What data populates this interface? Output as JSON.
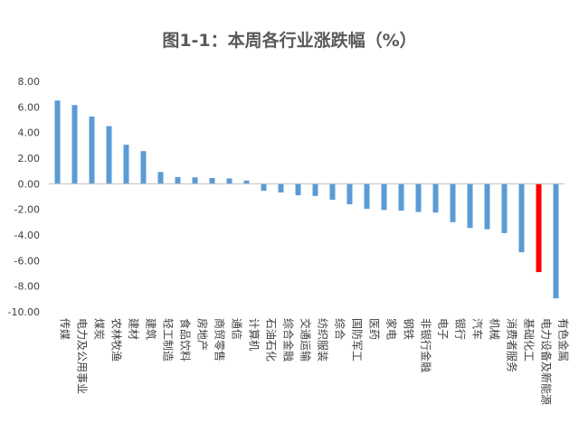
{
  "chart_data": {
    "type": "bar",
    "title": "图1-1：本周各行业涨跌幅（%）",
    "xlabel": "",
    "ylabel": "",
    "ylim": [
      -10,
      8
    ],
    "yticks": [
      "8.00",
      "6.00",
      "4.00",
      "2.00",
      "0.00",
      "-2.00",
      "-4.00",
      "-6.00",
      "-8.00",
      "-10.00"
    ],
    "grid": false,
    "legend": "none",
    "bar_color": "#5B9BD5",
    "highlight_color": "#FF0000",
    "highlight_category": "电力设备及新能源",
    "categories": [
      "传媒",
      "电力及公用事业",
      "煤炭",
      "农林牧渔",
      "建材",
      "建筑",
      "轻工制造",
      "食品饮料",
      "房地产",
      "商贸零售",
      "通信",
      "计算机",
      "石油石化",
      "综合金融",
      "交通运输",
      "纺织服装",
      "综合",
      "国防军工",
      "医药",
      "家电",
      "钢铁",
      "非银行金融",
      "电子",
      "银行",
      "汽车",
      "机械",
      "消费者服务",
      "基础化工",
      "电力设备及新能源",
      "有色金属"
    ],
    "values": [
      6.5,
      6.15,
      5.25,
      4.5,
      3.05,
      2.55,
      0.92,
      0.52,
      0.5,
      0.45,
      0.42,
      0.25,
      -0.55,
      -0.68,
      -0.9,
      -0.95,
      -1.25,
      -1.6,
      -1.95,
      -2.05,
      -2.1,
      -2.2,
      -2.25,
      -3.0,
      -3.45,
      -3.55,
      -3.85,
      -5.35,
      -6.9,
      -8.95
    ]
  }
}
